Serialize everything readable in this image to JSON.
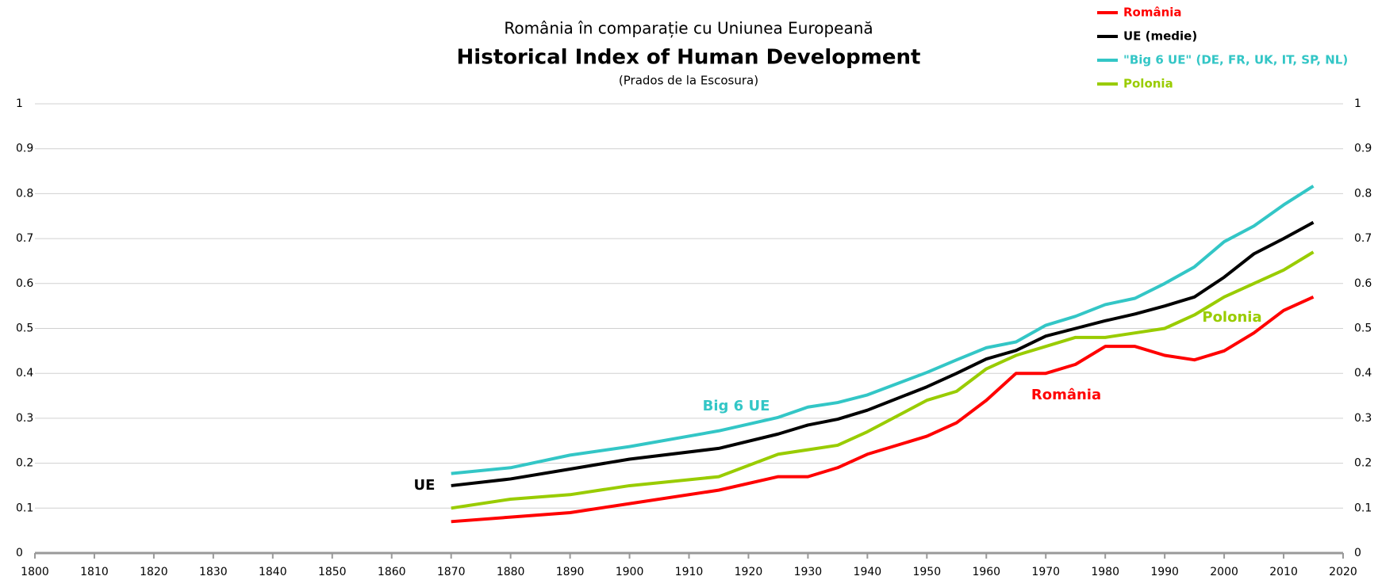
{
  "chart_data": {
    "type": "line",
    "subtitle": "România în comparație cu Uniunea Europeană",
    "title": "Historical Index of Human Development",
    "note": "(Prados de la Escosura)",
    "x": [
      1870,
      1880,
      1890,
      1900,
      1915,
      1925,
      1930,
      1935,
      1940,
      1950,
      1955,
      1960,
      1965,
      1970,
      1975,
      1980,
      1985,
      1990,
      1995,
      2000,
      2005,
      2010,
      2015
    ],
    "series": [
      {
        "name": "România",
        "color": "#ff0000",
        "values": [
          0.07,
          0.08,
          0.09,
          0.11,
          0.14,
          0.17,
          0.17,
          0.19,
          0.22,
          0.26,
          0.29,
          0.34,
          0.4,
          0.4,
          0.42,
          0.46,
          0.46,
          0.44,
          0.43,
          0.45,
          0.49,
          0.54,
          0.57
        ]
      },
      {
        "name": "UE (medie)",
        "color": "#000000",
        "values": [
          0.15,
          0.165,
          0.187,
          0.209,
          0.233,
          0.265,
          0.285,
          0.298,
          0.318,
          0.37,
          0.4,
          0.432,
          0.451,
          0.483,
          0.5,
          0.517,
          0.532,
          0.55,
          0.57,
          0.614,
          0.666,
          0.7,
          0.736
        ]
      },
      {
        "name": "\"Big 6 UE\" (DE, FR, UK, IT, SP, NL)",
        "color": "#33c6c6",
        "values": [
          0.177,
          0.19,
          0.218,
          0.237,
          0.272,
          0.302,
          0.325,
          0.335,
          0.352,
          0.402,
          0.43,
          0.457,
          0.47,
          0.507,
          0.527,
          0.553,
          0.567,
          0.6,
          0.637,
          0.693,
          0.728,
          0.775,
          0.817
        ]
      },
      {
        "name": "Polonia",
        "color": "#99cc00",
        "values": [
          0.1,
          0.12,
          0.13,
          0.15,
          0.17,
          0.22,
          0.23,
          0.24,
          0.27,
          0.34,
          0.36,
          0.41,
          0.44,
          0.46,
          0.48,
          0.48,
          0.49,
          0.5,
          0.53,
          0.57,
          0.6,
          0.63,
          0.67
        ]
      }
    ],
    "annotations": [
      {
        "text": "UE",
        "color": "#000000"
      },
      {
        "text": "Big 6 UE",
        "color": "#33c6c6"
      },
      {
        "text": "România",
        "color": "#ff0000"
      },
      {
        "text": "Polonia",
        "color": "#99cc00"
      }
    ],
    "xlim": [
      1800,
      2020
    ],
    "xticks": [
      1800,
      1810,
      1820,
      1830,
      1840,
      1850,
      1860,
      1870,
      1880,
      1890,
      1900,
      1910,
      1920,
      1930,
      1940,
      1950,
      1960,
      1970,
      1980,
      1990,
      2000,
      2010,
      2020
    ],
    "ylim": [
      0,
      1
    ],
    "yticks": [
      0,
      0.1,
      0.2,
      0.3,
      0.4,
      0.5,
      0.6,
      0.7,
      0.8,
      0.9,
      1
    ],
    "grid": true,
    "legend": "top-right"
  }
}
